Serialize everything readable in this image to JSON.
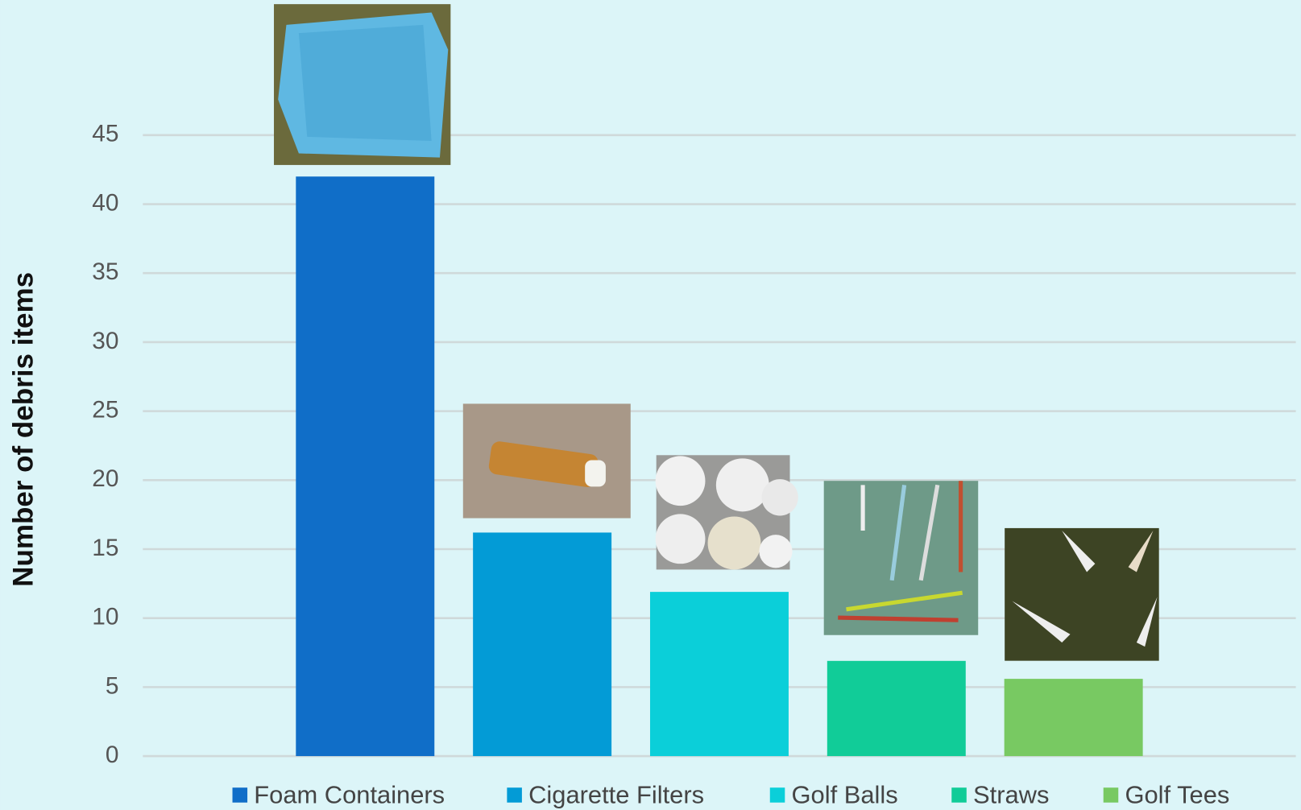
{
  "chart_data": {
    "type": "bar",
    "y_label": "Number of debris items",
    "categories": [
      "Foam Containers",
      "Cigarette Filters",
      "Golf Balls",
      "Straws",
      "Golf Tees"
    ],
    "values": [
      42,
      16.2,
      11.9,
      6.9,
      5.6
    ],
    "colors": [
      "#106ec8",
      "#039bd6",
      "#0bcfd9",
      "#11cc98",
      "#78c962"
    ],
    "ylim": [
      0,
      45
    ],
    "yticks": [
      0,
      5,
      10,
      15,
      20,
      25,
      30,
      35,
      40,
      45
    ],
    "grid": true,
    "legend": "bottom"
  }
}
